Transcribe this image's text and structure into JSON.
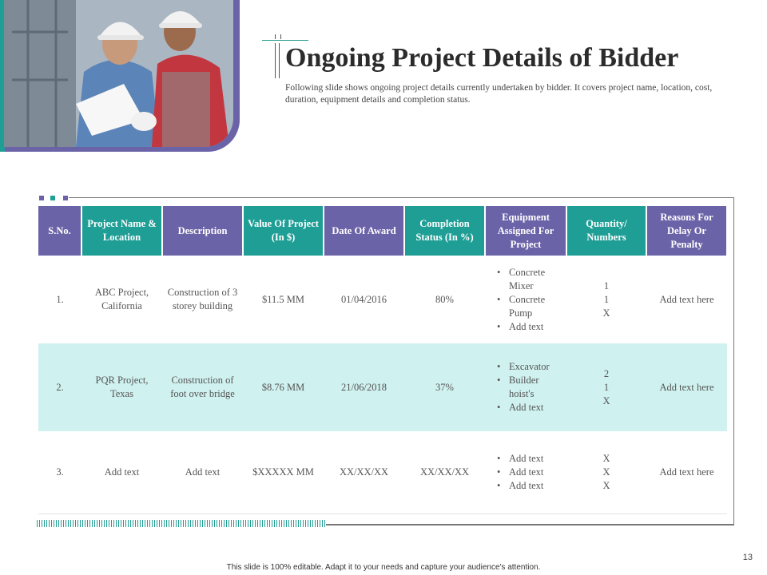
{
  "slide": {
    "title": "Ongoing Project Details of Bidder",
    "subtitle": "Following slide shows ongoing project details currently undertaken by bidder. It covers project name, location, cost, duration, equipment details and completion status.",
    "page_number": "13",
    "footer": "This slide is 100% editable. Adapt it to your needs and capture your audience's attention."
  },
  "colors": {
    "purple": "#6b63a8",
    "teal": "#1f9e95",
    "row_highlight": "#cff1ef"
  },
  "table": {
    "headers": [
      "S.No.",
      "Project Name & Location",
      "Description",
      "Value Of Project (In $)",
      "Date Of Award",
      "Completion Status (In %)",
      "Equipment Assigned For Project",
      "Quantity/ Numbers",
      "Reasons For Delay Or Penalty"
    ],
    "rows": [
      {
        "sno": "1.",
        "project": "ABC Project, California",
        "description": "Construction of 3 storey building",
        "value": "$11.5 MM",
        "date": "01/04/2016",
        "status": "80%",
        "equipment": [
          "Concrete Mixer",
          "Concrete Pump",
          "Add text"
        ],
        "quantity": [
          "1",
          "1",
          "X"
        ],
        "reason": "Add text here"
      },
      {
        "sno": "2.",
        "project": "PQR Project, Texas",
        "description": "Construction of foot over bridge",
        "value": "$8.76 MM",
        "date": "21/06/2018",
        "status": "37%",
        "equipment": [
          "Excavator",
          "Builder hoist's",
          "Add text"
        ],
        "quantity": [
          "2",
          "1",
          "X"
        ],
        "reason": "Add text here"
      },
      {
        "sno": "3.",
        "project": "Add text",
        "description": "Add text",
        "value": "$XXXXX MM",
        "date": "XX/XX/XX",
        "status": "XX/XX/XX",
        "equipment": [
          "Add text",
          "Add text",
          "Add text"
        ],
        "quantity": [
          "X",
          "X",
          "X"
        ],
        "reason": "Add text here"
      }
    ]
  }
}
